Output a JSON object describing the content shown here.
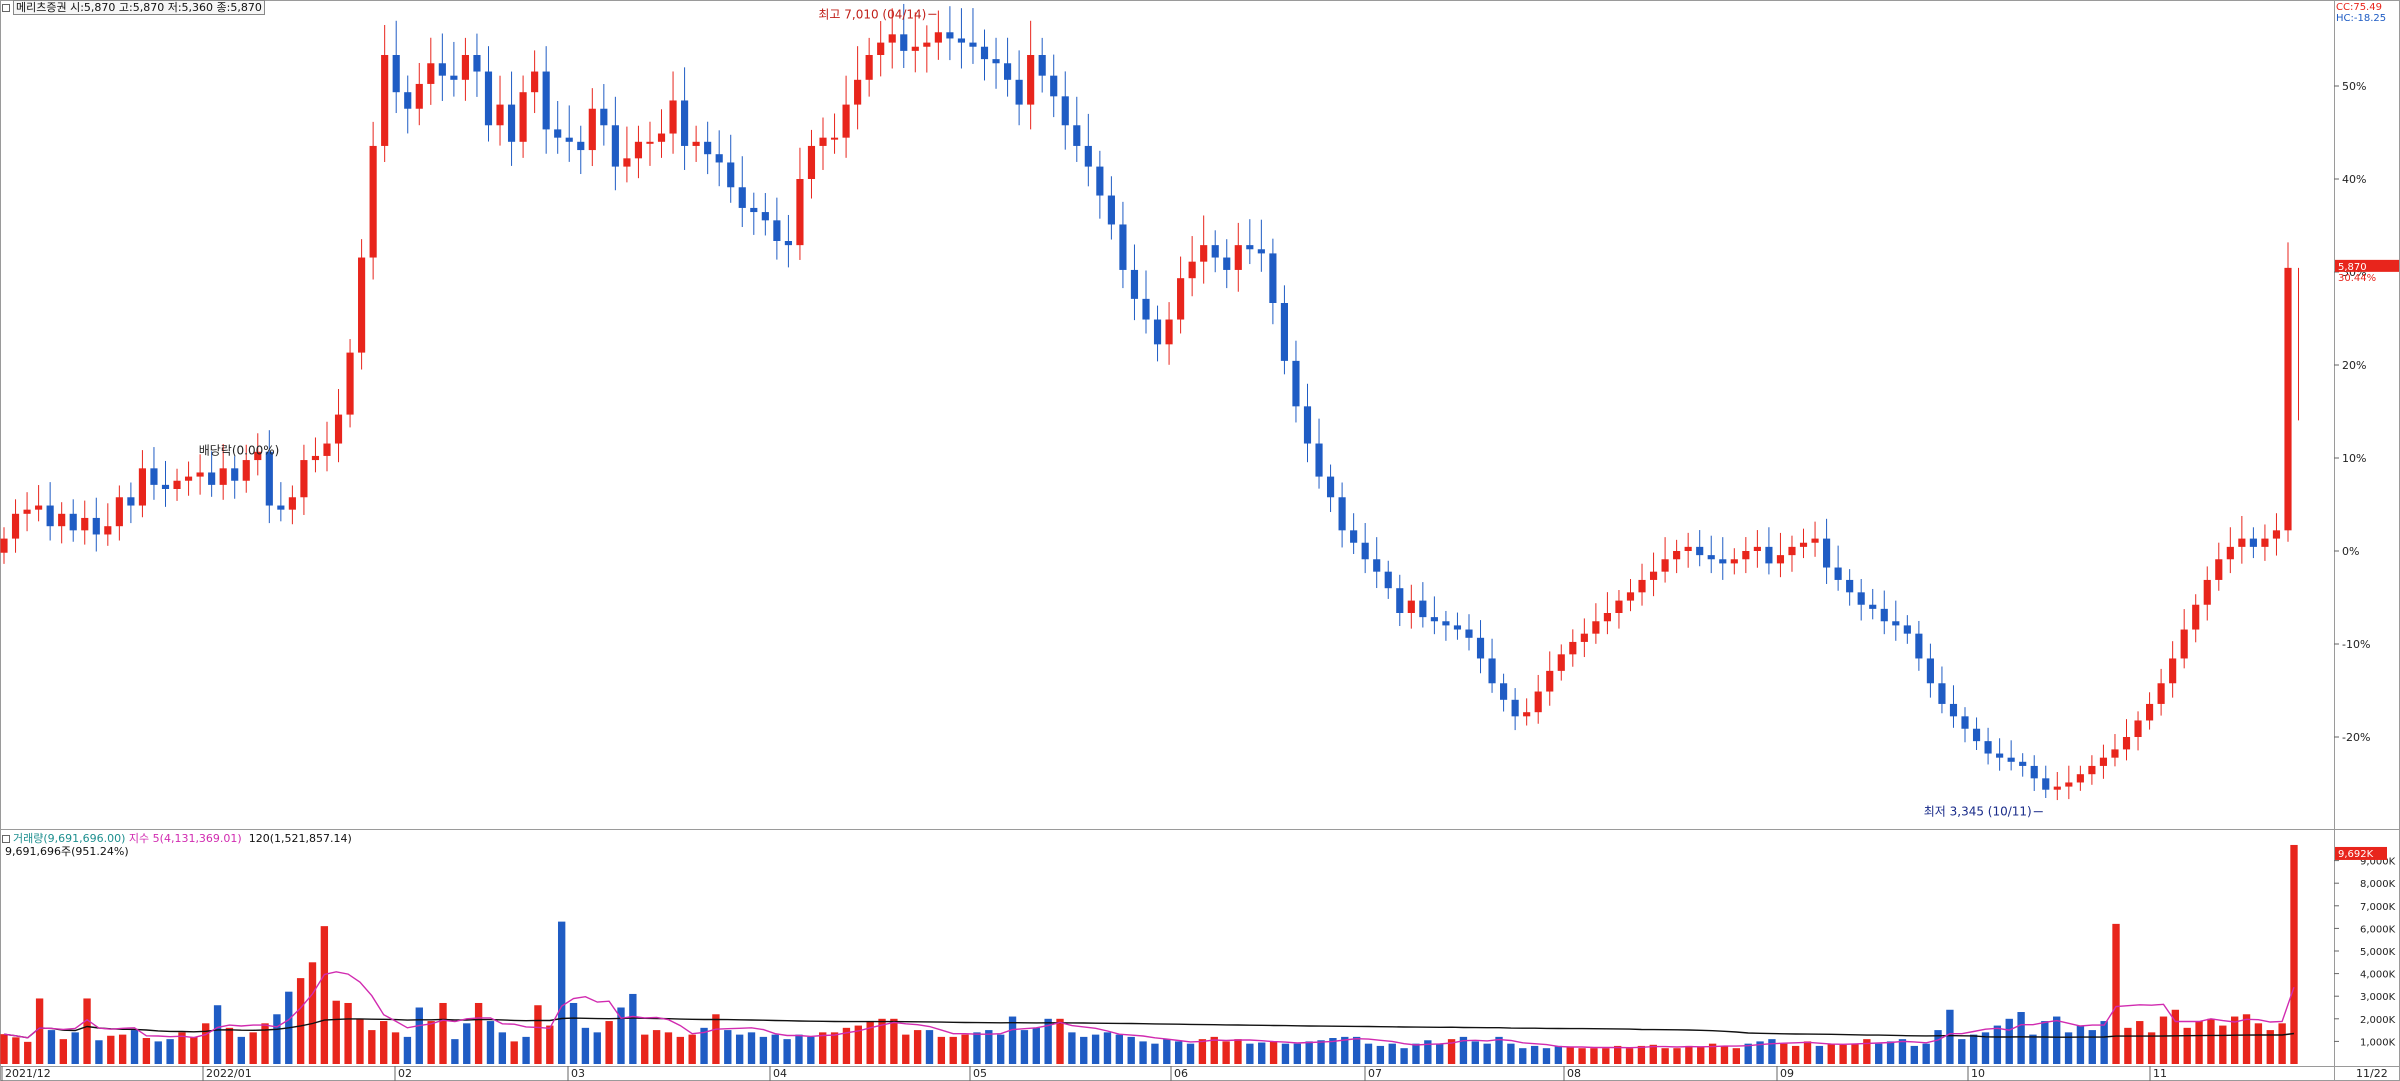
{
  "price_header": {
    "text": "메리츠증권 시:5,870 고:5,870 저:5,360 종:5,870"
  },
  "volume_header": {
    "volume": "거래량(9,691,696.00)",
    "ma5": "지수 5(4,131,369.01)",
    "ma120": "120(1,521,857.14)",
    "summary": "9,691,696주(951.24%)"
  },
  "corner_labels": {
    "a": "CC:75.49",
    "b": "HC:-18.25"
  },
  "colors": {
    "up": "#e8251c",
    "down": "#1f5cc4",
    "ma5": "#d12bb0",
    "ma120": "#111111",
    "grid": "#d8d8d8",
    "badge": "#e8251c"
  },
  "chart_data": [
    {
      "type": "candlestick",
      "reference_price": 4500,
      "price_axis_labels": [
        "50%",
        "40%",
        "30%",
        "20%",
        "10%",
        "0%",
        "-10%",
        "-20%"
      ],
      "last_price_badge": "5,870",
      "last_pct_badge": "30.44%",
      "annotations": {
        "high": "최고 7,010 (04/14)",
        "low": "최저 3,345 (10/11)",
        "dividend": "배당락(0.00%)"
      },
      "x_ticks": [
        "2021/12",
        "2022/01",
        "02",
        "03",
        "04",
        "05",
        "06",
        "07",
        "08",
        "09",
        "10",
        "11",
        "11/22"
      ],
      "closes": [
        4560,
        4680,
        4700,
        4720,
        4620,
        4680,
        4600,
        4660,
        4580,
        4620,
        4760,
        4720,
        4900,
        4820,
        4800,
        4840,
        4860,
        4880,
        4820,
        4900,
        4840,
        4940,
        4980,
        4720,
        4700,
        4760,
        4940,
        4960,
        5020,
        5160,
        5460,
        5920,
        6460,
        6900,
        6720,
        6640,
        6760,
        6860,
        6800,
        6780,
        6900,
        6820,
        6560,
        6660,
        6480,
        6720,
        6820,
        6540,
        6500,
        6480,
        6440,
        6640,
        6560,
        6360,
        6400,
        6480,
        6480,
        6520,
        6680,
        6460,
        6480,
        6420,
        6380,
        6260,
        6160,
        6140,
        6100,
        6000,
        5980,
        6300,
        6460,
        6500,
        6500,
        6660,
        6780,
        6900,
        6960,
        7000,
        6920,
        6940,
        6960,
        7010,
        6980,
        6960,
        6940,
        6880,
        6860,
        6780,
        6660,
        6900,
        6800,
        6700,
        6560,
        6460,
        6360,
        6220,
        6080,
        5860,
        5720,
        5620,
        5500,
        5620,
        5820,
        5900,
        5980,
        5920,
        5860,
        5980,
        5960,
        5940,
        5700,
        5420,
        5200,
        5020,
        4860,
        4760,
        4600,
        4540,
        4460,
        4400,
        4320,
        4200,
        4260,
        4180,
        4160,
        4140,
        4120,
        4080,
        3980,
        3860,
        3780,
        3700,
        3720,
        3820,
        3920,
        4000,
        4060,
        4100,
        4160,
        4200,
        4260,
        4300,
        4360,
        4400,
        4460,
        4500,
        4520,
        4480,
        4460,
        4440,
        4460,
        4500,
        4520,
        4440,
        4480,
        4520,
        4540,
        4560,
        4420,
        4360,
        4300,
        4240,
        4220,
        4160,
        4140,
        4100,
        3980,
        3860,
        3760,
        3700,
        3640,
        3580,
        3520,
        3500,
        3480,
        3460,
        3400,
        3345,
        3360,
        3380,
        3420,
        3460,
        3500,
        3540,
        3600,
        3680,
        3760,
        3860,
        3980,
        4120,
        4240,
        4360,
        4460,
        4520,
        4560,
        4520,
        4560,
        4600,
        5870
      ]
    },
    {
      "type": "bar",
      "title": "거래량",
      "y_axis_labels": [
        "9,000K",
        "8,000K",
        "7,000K",
        "6,000K",
        "5,000K",
        "4,000K",
        "3,000K",
        "2,000K",
        "1,000K"
      ],
      "ymax": 10000,
      "last_volume_badge": "9,692K",
      "values_k": [
        1320,
        1180,
        980,
        2900,
        1500,
        1100,
        1400,
        2900,
        1050,
        1250,
        1300,
        1500,
        1150,
        1000,
        1100,
        1400,
        1200,
        1800,
        2600,
        1600,
        1200,
        1400,
        1800,
        2200,
        3200,
        3800,
        4500,
        6100,
        2800,
        2700,
        2000,
        1500,
        1900,
        1400,
        1200,
        2500,
        1900,
        2700,
        1100,
        1800,
        2700,
        1900,
        1400,
        1000,
        1200,
        2600,
        1700,
        6300,
        2700,
        1600,
        1400,
        1900,
        2500,
        3100,
        1300,
        1500,
        1400,
        1200,
        1300,
        1600,
        2200,
        1500,
        1300,
        1400,
        1200,
        1300,
        1100,
        1300,
        1200,
        1400,
        1400,
        1600,
        1700,
        1900,
        2000,
        2000,
        1300,
        1500,
        1500,
        1200,
        1200,
        1300,
        1400,
        1500,
        1300,
        2100,
        1500,
        1600,
        2000,
        2000,
        1400,
        1200,
        1300,
        1400,
        1300,
        1200,
        1000,
        900,
        1100,
        1000,
        900,
        1100,
        1200,
        1000,
        1100,
        900,
        950,
        1000,
        900,
        900,
        1000,
        1050,
        1150,
        1200,
        1200,
        900,
        800,
        900,
        700,
        900,
        1050,
        900,
        1100,
        1200,
        1000,
        900,
        1200,
        900,
        700,
        800,
        700,
        800,
        750,
        700,
        700,
        700,
        800,
        700,
        800,
        850,
        700,
        700,
        800,
        750,
        900,
        800,
        700,
        900,
        1000,
        1100,
        900,
        800,
        1000,
        800,
        900,
        850,
        900,
        1100,
        900,
        1000,
        1100,
        800,
        900,
        1500,
        2400,
        1100,
        1300,
        1400,
        1700,
        2000,
        2300,
        1300,
        1900,
        2100,
        1400,
        1700,
        1500,
        1900,
        6200,
        1600,
        1900,
        1400,
        2100,
        2400,
        1600,
        1900,
        2000,
        1700,
        2100,
        2200,
        1800,
        1500,
        1800,
        9692
      ],
      "ma5_label": "지수 5",
      "ma120_label": "120"
    }
  ]
}
